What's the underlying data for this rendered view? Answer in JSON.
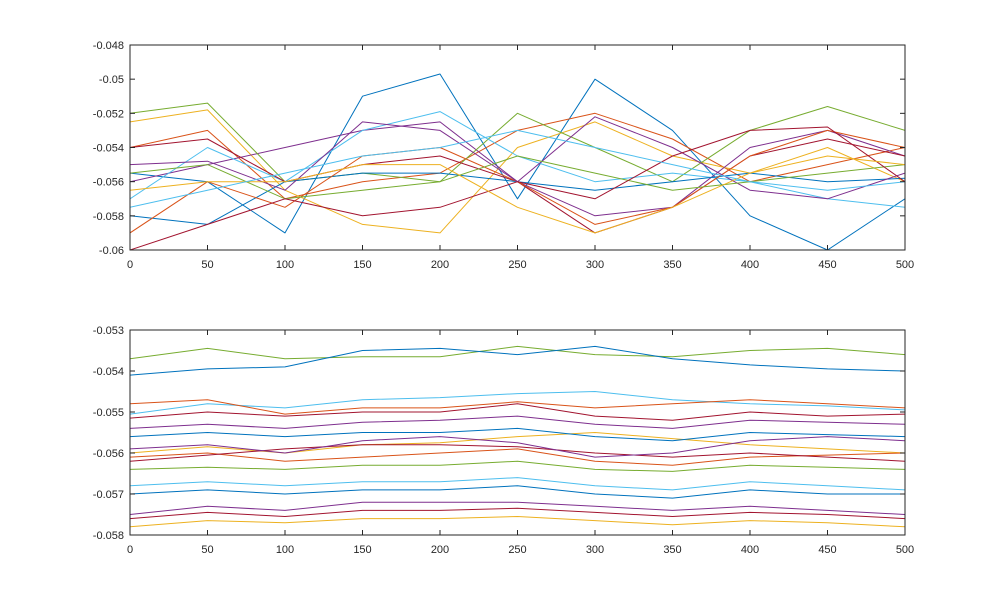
{
  "chart_data": [
    {
      "type": "line",
      "title": "",
      "xlabel": "",
      "ylabel": "",
      "xlim": [
        0,
        500
      ],
      "ylim": [
        -0.06,
        -0.048
      ],
      "xticks": [
        0,
        50,
        100,
        150,
        200,
        250,
        300,
        350,
        400,
        450,
        500
      ],
      "xtick_labels": [
        "0",
        "50",
        "100",
        "150",
        "200",
        "250",
        "300",
        "350",
        "400",
        "450",
        "500"
      ],
      "yticks": [
        -0.06,
        -0.058,
        -0.056,
        -0.054,
        -0.052,
        -0.05,
        -0.048
      ],
      "ytick_labels": [
        "-0.06",
        "-0.058",
        "-0.056",
        "-0.054",
        "-0.052",
        "-0.05",
        "-0.048"
      ],
      "grid": false,
      "legend": "none",
      "series": [
        {
          "color": "#0072BD",
          "x": [
            0,
            50,
            100,
            150,
            200,
            250,
            300,
            350,
            400,
            450,
            500
          ],
          "y": [
            -0.0555,
            -0.056,
            -0.059,
            -0.051,
            -0.0497,
            -0.057,
            -0.05,
            -0.053,
            -0.058,
            -0.06,
            -0.057
          ]
        },
        {
          "color": "#D95319",
          "x": [
            0,
            50,
            100,
            150,
            200,
            250,
            300,
            350,
            400,
            450,
            500
          ],
          "y": [
            -0.054,
            -0.053,
            -0.057,
            -0.056,
            -0.0555,
            -0.053,
            -0.052,
            -0.0535,
            -0.056,
            -0.055,
            -0.054
          ]
        },
        {
          "color": "#EDB120",
          "x": [
            0,
            50,
            100,
            150,
            200,
            250,
            300,
            350,
            400,
            450,
            500
          ],
          "y": [
            -0.0525,
            -0.0518,
            -0.0565,
            -0.0585,
            -0.059,
            -0.054,
            -0.0525,
            -0.0545,
            -0.0555,
            -0.054,
            -0.056
          ]
        },
        {
          "color": "#7E2F8E",
          "x": [
            0,
            50,
            100,
            150,
            200,
            250,
            300,
            350,
            400,
            450,
            500
          ],
          "y": [
            -0.056,
            -0.055,
            -0.054,
            -0.053,
            -0.0525,
            -0.056,
            -0.058,
            -0.0575,
            -0.054,
            -0.053,
            -0.0545
          ]
        },
        {
          "color": "#77AC30",
          "x": [
            0,
            50,
            100,
            150,
            200,
            250,
            300,
            350,
            400,
            450,
            500
          ],
          "y": [
            -0.052,
            -0.0514,
            -0.056,
            -0.0555,
            -0.056,
            -0.052,
            -0.054,
            -0.056,
            -0.053,
            -0.0516,
            -0.053
          ]
        },
        {
          "color": "#4DBEEE",
          "x": [
            0,
            50,
            100,
            150,
            200,
            250,
            300,
            350,
            400,
            450,
            500
          ],
          "y": [
            -0.057,
            -0.054,
            -0.056,
            -0.053,
            -0.0519,
            -0.0545,
            -0.056,
            -0.0555,
            -0.056,
            -0.057,
            -0.0575
          ]
        },
        {
          "color": "#A2142F",
          "x": [
            0,
            50,
            100,
            150,
            200,
            250,
            300,
            350,
            400,
            450,
            500
          ],
          "y": [
            -0.054,
            -0.0535,
            -0.056,
            -0.055,
            -0.0545,
            -0.056,
            -0.059,
            -0.0575,
            -0.0545,
            -0.0535,
            -0.0545
          ]
        },
        {
          "color": "#0072BD",
          "x": [
            0,
            50,
            100,
            150,
            200,
            250,
            300,
            350,
            400,
            450,
            500
          ],
          "y": [
            -0.058,
            -0.0585,
            -0.056,
            -0.0555,
            -0.0555,
            -0.056,
            -0.0565,
            -0.056,
            -0.0555,
            -0.056,
            -0.0558
          ]
        },
        {
          "color": "#D95319",
          "x": [
            0,
            50,
            100,
            150,
            200,
            250,
            300,
            350,
            400,
            450,
            500
          ],
          "y": [
            -0.059,
            -0.056,
            -0.0575,
            -0.0545,
            -0.054,
            -0.056,
            -0.0585,
            -0.0575,
            -0.0545,
            -0.053,
            -0.054
          ]
        },
        {
          "color": "#7E2F8E",
          "x": [
            0,
            50,
            100,
            150,
            200,
            250,
            300,
            350,
            400,
            450,
            500
          ],
          "y": [
            -0.055,
            -0.0548,
            -0.0565,
            -0.0525,
            -0.053,
            -0.056,
            -0.0522,
            -0.054,
            -0.0565,
            -0.057,
            -0.0555
          ]
        },
        {
          "color": "#77AC30",
          "x": [
            0,
            50,
            100,
            150,
            200,
            250,
            300,
            350,
            400,
            450,
            500
          ],
          "y": [
            -0.0555,
            -0.055,
            -0.057,
            -0.0565,
            -0.056,
            -0.0545,
            -0.0555,
            -0.0565,
            -0.056,
            -0.0555,
            -0.055
          ]
        },
        {
          "color": "#A2142F",
          "x": [
            0,
            50,
            100,
            150,
            200,
            250,
            300,
            350,
            400,
            450,
            500
          ],
          "y": [
            -0.06,
            -0.0585,
            -0.057,
            -0.058,
            -0.0575,
            -0.056,
            -0.057,
            -0.0545,
            -0.053,
            -0.0528,
            -0.056
          ]
        },
        {
          "color": "#EDB120",
          "x": [
            0,
            50,
            100,
            150,
            200,
            250,
            300,
            350,
            400,
            450,
            500
          ],
          "y": [
            -0.0565,
            -0.056,
            -0.056,
            -0.055,
            -0.055,
            -0.0575,
            -0.059,
            -0.0575,
            -0.0555,
            -0.0545,
            -0.055
          ]
        },
        {
          "color": "#4DBEEE",
          "x": [
            0,
            50,
            100,
            150,
            200,
            250,
            300,
            350,
            400,
            450,
            500
          ],
          "y": [
            -0.0575,
            -0.0565,
            -0.0555,
            -0.0545,
            -0.054,
            -0.053,
            -0.054,
            -0.055,
            -0.056,
            -0.0565,
            -0.056
          ]
        }
      ]
    },
    {
      "type": "line",
      "title": "",
      "xlabel": "",
      "ylabel": "",
      "xlim": [
        0,
        500
      ],
      "ylim": [
        -0.058,
        -0.053
      ],
      "xticks": [
        0,
        50,
        100,
        150,
        200,
        250,
        300,
        350,
        400,
        450,
        500
      ],
      "xtick_labels": [
        "0",
        "50",
        "100",
        "150",
        "200",
        "250",
        "300",
        "350",
        "400",
        "450",
        "500"
      ],
      "yticks": [
        -0.058,
        -0.057,
        -0.056,
        -0.055,
        -0.054,
        -0.053
      ],
      "ytick_labels": [
        "-0.058",
        "-0.057",
        "-0.056",
        "-0.055",
        "-0.054",
        "-0.053"
      ],
      "grid": false,
      "legend": "none",
      "series": [
        {
          "color": "#77AC30",
          "x": [
            0,
            50,
            100,
            150,
            200,
            250,
            300,
            350,
            400,
            450,
            500
          ],
          "y": [
            -0.0537,
            -0.05345,
            -0.0537,
            -0.05365,
            -0.05365,
            -0.0534,
            -0.0536,
            -0.05365,
            -0.0535,
            -0.05345,
            -0.0536
          ]
        },
        {
          "color": "#0072BD",
          "x": [
            0,
            50,
            100,
            150,
            200,
            250,
            300,
            350,
            400,
            450,
            500
          ],
          "y": [
            -0.0541,
            -0.05395,
            -0.0539,
            -0.0535,
            -0.05345,
            -0.0536,
            -0.0534,
            -0.0537,
            -0.05385,
            -0.05395,
            -0.054
          ]
        },
        {
          "color": "#4DBEEE",
          "x": [
            0,
            50,
            100,
            150,
            200,
            250,
            300,
            350,
            400,
            450,
            500
          ],
          "y": [
            -0.05505,
            -0.0548,
            -0.0549,
            -0.0547,
            -0.05465,
            -0.05455,
            -0.0545,
            -0.0547,
            -0.0548,
            -0.05485,
            -0.05495
          ]
        },
        {
          "color": "#D95319",
          "x": [
            0,
            50,
            100,
            150,
            200,
            250,
            300,
            350,
            400,
            450,
            500
          ],
          "y": [
            -0.0548,
            -0.0547,
            -0.05505,
            -0.0549,
            -0.0549,
            -0.05475,
            -0.0549,
            -0.0548,
            -0.0547,
            -0.0548,
            -0.0549
          ]
        },
        {
          "color": "#A2142F",
          "x": [
            0,
            50,
            100,
            150,
            200,
            250,
            300,
            350,
            400,
            450,
            500
          ],
          "y": [
            -0.05515,
            -0.055,
            -0.0551,
            -0.055,
            -0.055,
            -0.0548,
            -0.0551,
            -0.0552,
            -0.055,
            -0.0551,
            -0.05505
          ]
        },
        {
          "color": "#7E2F8E",
          "x": [
            0,
            50,
            100,
            150,
            200,
            250,
            300,
            350,
            400,
            450,
            500
          ],
          "y": [
            -0.0554,
            -0.0553,
            -0.0554,
            -0.05525,
            -0.0552,
            -0.0551,
            -0.0553,
            -0.0554,
            -0.0552,
            -0.05525,
            -0.0553
          ]
        },
        {
          "color": "#EDB120",
          "x": [
            0,
            50,
            100,
            150,
            200,
            250,
            300,
            350,
            400,
            450,
            500
          ],
          "y": [
            -0.056,
            -0.05585,
            -0.056,
            -0.0558,
            -0.05575,
            -0.0556,
            -0.0555,
            -0.05565,
            -0.0558,
            -0.0559,
            -0.056
          ]
        },
        {
          "color": "#0072BD",
          "x": [
            0,
            50,
            100,
            150,
            200,
            250,
            300,
            350,
            400,
            450,
            500
          ],
          "y": [
            -0.0556,
            -0.0555,
            -0.0556,
            -0.0555,
            -0.0555,
            -0.0554,
            -0.0556,
            -0.0557,
            -0.0555,
            -0.05555,
            -0.0556
          ]
        },
        {
          "color": "#D95319",
          "x": [
            0,
            50,
            100,
            150,
            200,
            250,
            300,
            350,
            400,
            450,
            500
          ],
          "y": [
            -0.0561,
            -0.056,
            -0.0562,
            -0.0561,
            -0.056,
            -0.0559,
            -0.0562,
            -0.0563,
            -0.0561,
            -0.05605,
            -0.056
          ]
        },
        {
          "color": "#77AC30",
          "x": [
            0,
            50,
            100,
            150,
            200,
            250,
            300,
            350,
            400,
            450,
            500
          ],
          "y": [
            -0.0564,
            -0.05635,
            -0.0564,
            -0.0563,
            -0.0563,
            -0.0562,
            -0.0564,
            -0.05645,
            -0.0563,
            -0.05635,
            -0.0564
          ]
        },
        {
          "color": "#A2142F",
          "x": [
            0,
            50,
            100,
            150,
            200,
            250,
            300,
            350,
            400,
            450,
            500
          ],
          "y": [
            -0.0562,
            -0.05605,
            -0.0559,
            -0.0558,
            -0.0558,
            -0.05585,
            -0.056,
            -0.0561,
            -0.056,
            -0.0561,
            -0.0562
          ]
        },
        {
          "color": "#7E2F8E",
          "x": [
            0,
            50,
            100,
            150,
            200,
            250,
            300,
            350,
            400,
            450,
            500
          ],
          "y": [
            -0.0559,
            -0.0558,
            -0.056,
            -0.0557,
            -0.0556,
            -0.05575,
            -0.0561,
            -0.056,
            -0.0557,
            -0.0556,
            -0.0557
          ]
        },
        {
          "color": "#4DBEEE",
          "x": [
            0,
            50,
            100,
            150,
            200,
            250,
            300,
            350,
            400,
            450,
            500
          ],
          "y": [
            -0.0568,
            -0.0567,
            -0.0568,
            -0.0567,
            -0.0567,
            -0.0566,
            -0.0568,
            -0.0569,
            -0.0567,
            -0.0568,
            -0.0569
          ]
        },
        {
          "color": "#0072BD",
          "x": [
            0,
            50,
            100,
            150,
            200,
            250,
            300,
            350,
            400,
            450,
            500
          ],
          "y": [
            -0.057,
            -0.0569,
            -0.057,
            -0.0569,
            -0.0569,
            -0.0568,
            -0.057,
            -0.0571,
            -0.0569,
            -0.057,
            -0.057
          ]
        },
        {
          "color": "#7E2F8E",
          "x": [
            0,
            50,
            100,
            150,
            200,
            250,
            300,
            350,
            400,
            450,
            500
          ],
          "y": [
            -0.0575,
            -0.0573,
            -0.0574,
            -0.0572,
            -0.0572,
            -0.0572,
            -0.0573,
            -0.0574,
            -0.0573,
            -0.0574,
            -0.0575
          ]
        },
        {
          "color": "#A2142F",
          "x": [
            0,
            50,
            100,
            150,
            200,
            250,
            300,
            350,
            400,
            450,
            500
          ],
          "y": [
            -0.0576,
            -0.05745,
            -0.05755,
            -0.0574,
            -0.0574,
            -0.05735,
            -0.05745,
            -0.05755,
            -0.05745,
            -0.0575,
            -0.0576
          ]
        },
        {
          "color": "#EDB120",
          "x": [
            0,
            50,
            100,
            150,
            200,
            250,
            300,
            350,
            400,
            450,
            500
          ],
          "y": [
            -0.0578,
            -0.05765,
            -0.0577,
            -0.0576,
            -0.0576,
            -0.05755,
            -0.05765,
            -0.05775,
            -0.05765,
            -0.0577,
            -0.0578
          ]
        }
      ]
    }
  ]
}
